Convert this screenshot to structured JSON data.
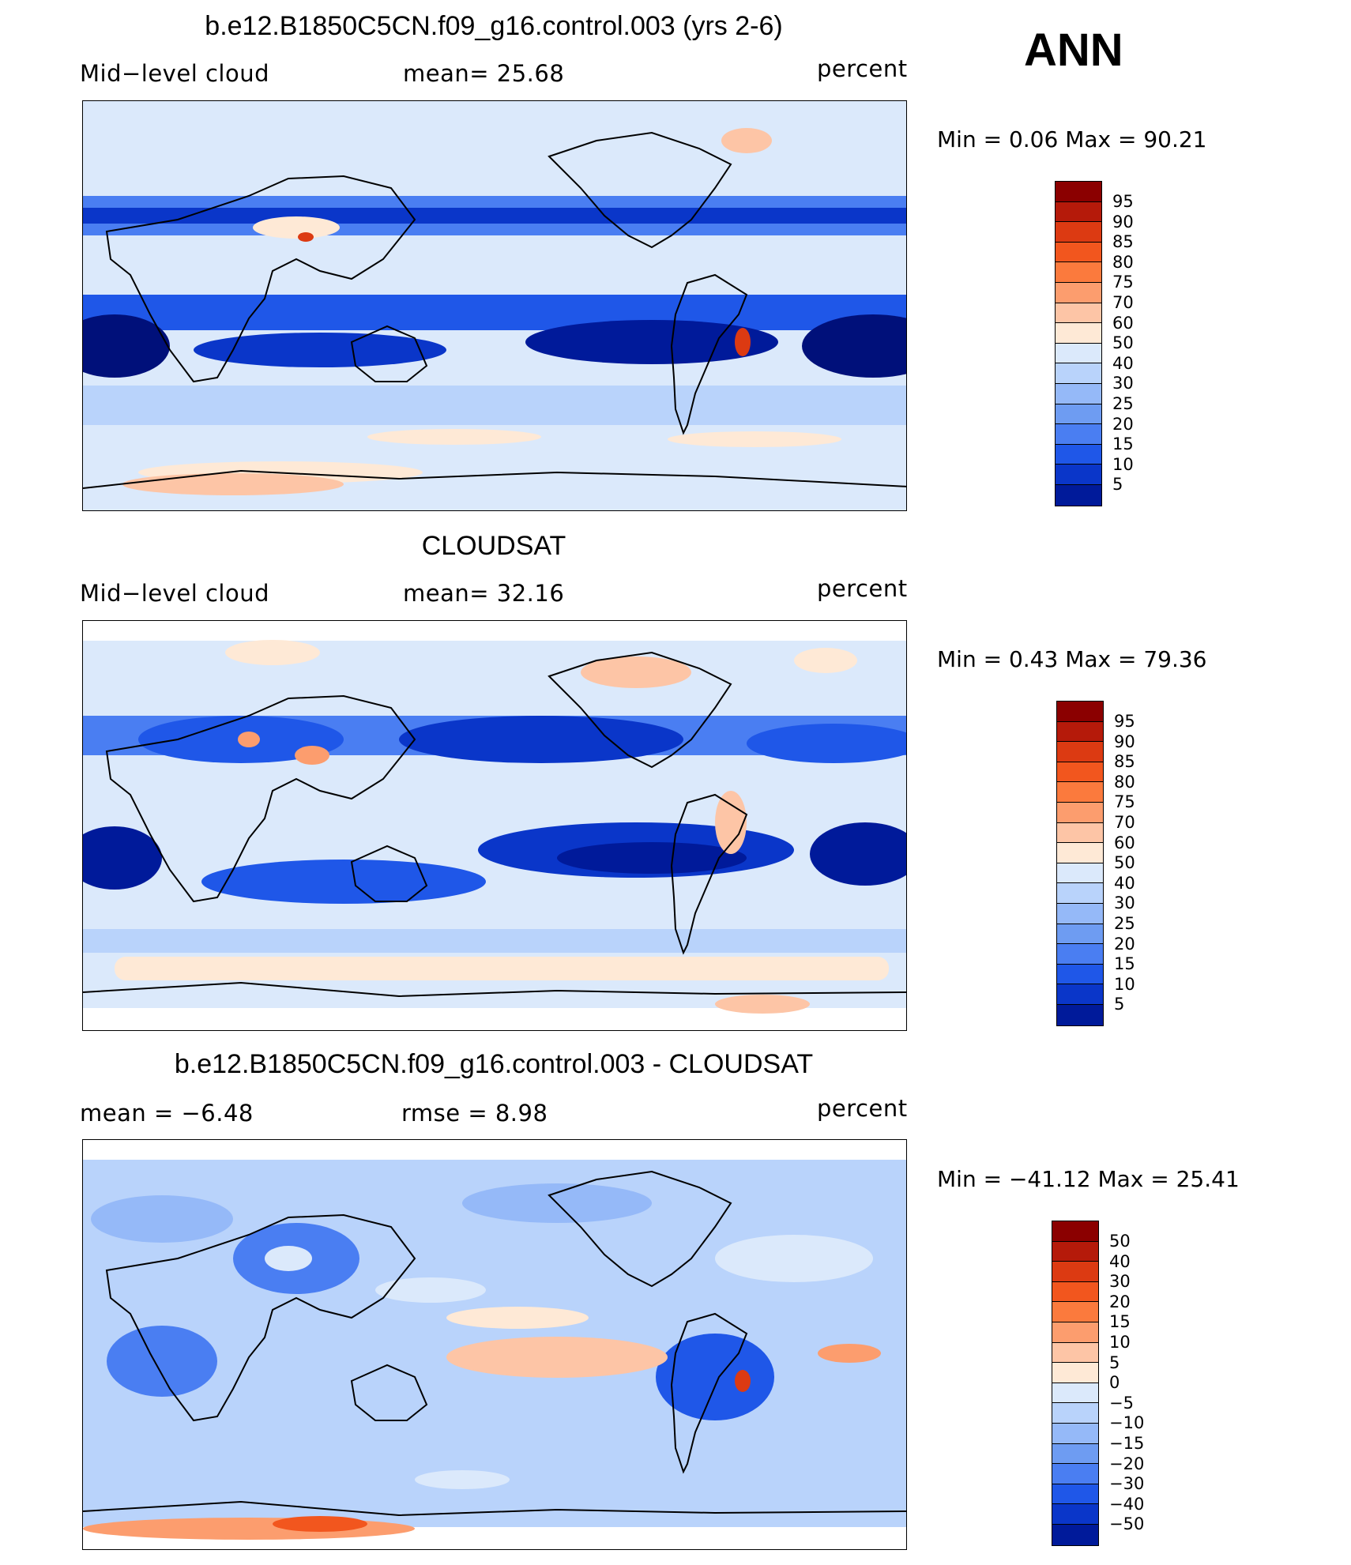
{
  "season": "ANN",
  "panels": [
    {
      "title": "b.e12.B1850C5CN.f09_g16.control.003 (yrs 2-6)",
      "left_label": "Mid−level cloud",
      "mid_label": "mean=   25.68",
      "units": "percent",
      "minmax": "Min =    0.06  Max =   90.21",
      "colorbar_labels": [
        "95",
        "90",
        "85",
        "80",
        "75",
        "70",
        "60",
        "50",
        "40",
        "30",
        "25",
        "20",
        "15",
        "10",
        "5"
      ]
    },
    {
      "title": "CLOUDSAT",
      "left_label": "Mid−level cloud",
      "mid_label": "mean=   32.16",
      "units": "percent",
      "minmax": "Min =    0.43  Max =   79.36",
      "colorbar_labels": [
        "95",
        "90",
        "85",
        "80",
        "75",
        "70",
        "60",
        "50",
        "40",
        "30",
        "25",
        "20",
        "15",
        "10",
        "5"
      ]
    },
    {
      "title": "b.e12.B1850C5CN.f09_g16.control.003 - CLOUDSAT",
      "left_label": "mean =   −6.48",
      "mid_label": "rmse =    8.98",
      "units": "percent",
      "minmax": "Min = −41.12  Max =   25.41",
      "colorbar_labels": [
        "50",
        "40",
        "30",
        "20",
        "15",
        "10",
        "5",
        "0",
        "−5",
        "−10",
        "−15",
        "−20",
        "−30",
        "−40",
        "−50"
      ]
    }
  ],
  "colors": {
    "levels": [
      "#8b0000",
      "#b51a0a",
      "#dc3a12",
      "#f2561e",
      "#fb7a3d",
      "#fc9d6e",
      "#fdc5a6",
      "#fee9d6",
      "#dbe9fb",
      "#b9d3fb",
      "#95b9f8",
      "#6e9cf2",
      "#4a7ef2",
      "#1f57e8",
      "#0a36c9",
      "#001a9a",
      "#00107a"
    ]
  }
}
